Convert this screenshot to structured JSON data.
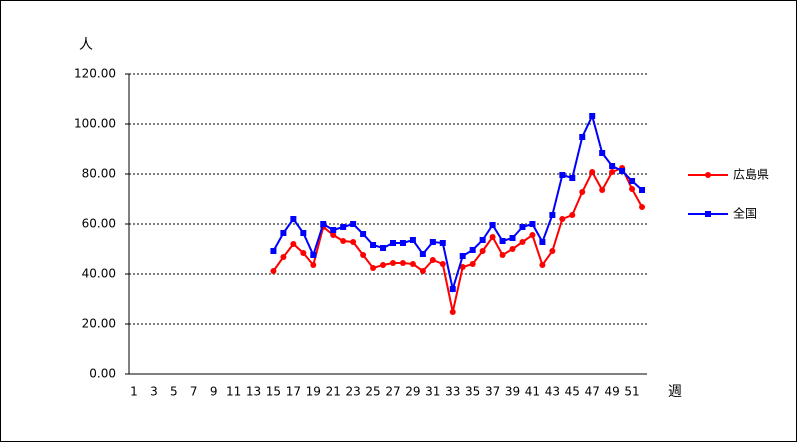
{
  "chart_data": {
    "type": "line",
    "y_label": "人",
    "x_label": "週",
    "categories": [
      "1",
      null,
      "3",
      null,
      "5",
      null,
      "7",
      null,
      "9",
      null,
      "11",
      null,
      "13",
      null,
      "15",
      null,
      "17",
      null,
      "19",
      null,
      "21",
      null,
      "23",
      null,
      "25",
      null,
      "27",
      null,
      "29",
      null,
      "31",
      null,
      "33",
      null,
      "35",
      null,
      "37",
      null,
      "39",
      null,
      "41",
      null,
      "43",
      null,
      "45",
      null,
      "47",
      null,
      "49",
      null,
      "51",
      null
    ],
    "series": [
      {
        "name": "広島県",
        "color": "#ff0000",
        "marker": "circle",
        "values": [
          null,
          null,
          null,
          null,
          null,
          null,
          null,
          null,
          null,
          null,
          null,
          null,
          null,
          null,
          41.2,
          46.8,
          52,
          48.4,
          43.6,
          58.8,
          55.6,
          53.2,
          52.8,
          47.6,
          42.4,
          43.6,
          44.4,
          44.4,
          44,
          41.2,
          45.6,
          44,
          24.8,
          42.8,
          44,
          49.2,
          54.8,
          47.6,
          50,
          52.8,
          55.6,
          43.6,
          49.2,
          62,
          63.6,
          72.8,
          80.8,
          73.6,
          80.8,
          82.4,
          74,
          66.8
        ]
      },
      {
        "name": "全国",
        "color": "#0000ff",
        "marker": "square",
        "values": [
          null,
          null,
          null,
          null,
          null,
          null,
          null,
          null,
          null,
          null,
          null,
          null,
          null,
          null,
          49.2,
          56.4,
          62,
          56.4,
          47.6,
          60,
          57.6,
          58.8,
          60,
          56,
          51.6,
          50.4,
          52.4,
          52.4,
          53.6,
          48,
          52.8,
          52.4,
          34,
          47.2,
          49.6,
          53.6,
          59.6,
          53.2,
          54.4,
          58.8,
          60,
          52.8,
          63.6,
          79.6,
          78.4,
          94.8,
          103.2,
          88.4,
          83.2,
          81.2,
          77.2,
          73.6
        ]
      }
    ],
    "ylim": [
      0,
      120
    ],
    "yticks": [
      {
        "value": 0,
        "label": "0.00"
      },
      {
        "value": 20,
        "label": "20.00"
      },
      {
        "value": 40,
        "label": "40.00"
      },
      {
        "value": 60,
        "label": "60.00"
      },
      {
        "value": 80,
        "label": "80.00"
      },
      {
        "value": 100,
        "label": "100.00"
      },
      {
        "value": 120,
        "label": "120.00"
      }
    ],
    "grid": true,
    "legend": "right"
  }
}
